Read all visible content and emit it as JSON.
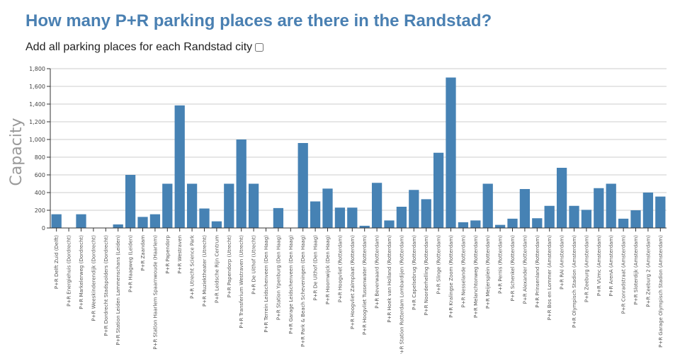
{
  "page": {
    "title": "How many P+R parking places are there in the Randstad?",
    "toggle_label": "Add all parking places for each Randstad city"
  },
  "chart_data": {
    "type": "bar",
    "ylabel": "Capacity",
    "ylim": [
      0,
      1800
    ],
    "yticks": [
      0,
      200,
      400,
      600,
      800,
      1000,
      1200,
      1400,
      1600,
      1800
    ],
    "ytick_labels": [
      "0",
      "200",
      "400",
      "600",
      "800",
      "1,000",
      "1,200",
      "1,400",
      "1,600",
      "1,800"
    ],
    "bar_color": "#4682b4",
    "grid": true,
    "categories": [
      "P+R Delft Zuid (Delft)",
      "P+R Energiehuis (Dordrecht)",
      "P+R Markelerweg (Dordrecht)",
      "P+R Weeskinderendijk (Dordrecht)",
      "P+R Dordrecht Stadspolders (Dordrecht)",
      "P+R Station Leiden Lammenschans (Leiden)",
      "P+R Haagweg (Leiden)",
      "P+R Zaandam",
      "P+R Station Haarlem Spaarnwoude (Haarlem)",
      "P+R Papendorp",
      "P+R Westraven",
      "P+R Utrecht Science Park",
      "P+R Muziektheater (Utrecht)",
      "P+R Leidsche Rijn Centrum",
      "P+R Papendorp (Utrecht)",
      "P+R Transferium Westraven (Utrecht)",
      "P+R De Uithof (Utrecht)",
      "P+R Terrein Leidschenveen (Den Haag)",
      "P+R Station Ypenburg (Den Haag)",
      "P+R Garage Leidschenveen (Den Haag)",
      "P+R Park & Beach Scheveningen (Den Haag)",
      "P+R De Uithof (Den Haag)",
      "P+R Hoornwijck (Den Haag)",
      "P+R Hoogvliet (Rotterdam)",
      "P+R Hoogvliet Zalmplaat (Rotterdam)",
      "P+R Hoogvliet Tussenwater (Rotterdam)",
      "P+R Beverwaard (Rotterdam)",
      "P+R Hoek van Holland (Rotterdam)",
      "P+R Station Rotterdam Lombardijen (Rotterdam)",
      "P+R Capelsebrug (Rotterdam)",
      "P+R Noorderhelling (Rotterdam)",
      "P+R Slinge (Rotterdam)",
      "P+R Kralingse Zoom (Rotterdam)",
      "P+R Nesselande (Rotterdam)",
      "P+R Melanchtonweg (Rotterdam)",
      "P+R Meijersplein (Rotterdam)",
      "P+R Pernis (Rotterdam)",
      "P+R Schenkel (Rotterdam)",
      "P+R Alexander (Rotterdam)",
      "P+R Prinsenland (Rotterdam)",
      "P+R Bos en Lommer (Amsterdam)",
      "P+R RAI (Amsterdam)",
      "P+R Olympisch Stadion (Amsterdam)",
      "P+R Zeeburg (Amsterdam)",
      "P+R VUmc (Amsterdam)",
      "P+R ArenA (Amsterdam)",
      "P+R Conradstraat (Amsterdam)",
      "P+R Sloterdijk (Amsterdam)",
      "P+R Zeeburg 2 (Amsterdam)",
      "P+R Garage Olympisch Stadion (Amsterdam)"
    ],
    "values": [
      155,
      0,
      155,
      0,
      0,
      40,
      600,
      125,
      155,
      500,
      1385,
      500,
      220,
      75,
      500,
      1000,
      500,
      0,
      225,
      0,
      960,
      300,
      445,
      230,
      230,
      25,
      510,
      85,
      240,
      430,
      325,
      850,
      1700,
      65,
      85,
      500,
      35,
      105,
      440,
      110,
      250,
      680,
      250,
      205,
      450,
      500,
      105,
      200,
      400,
      355
    ]
  }
}
